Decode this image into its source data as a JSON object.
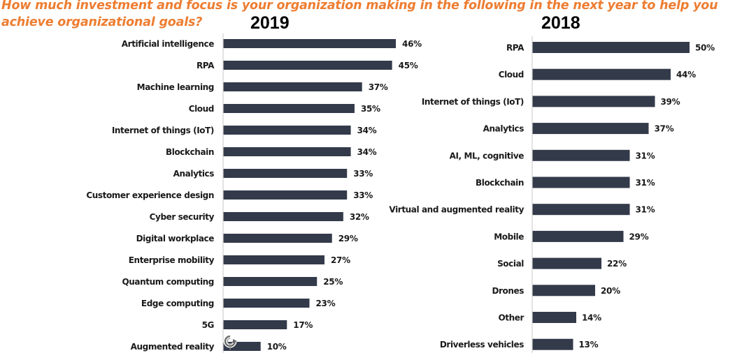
{
  "question": "How much investment and focus is your organization making in the following in the next year to help you achieve organizational goals?",
  "colors": {
    "question": "#ed7d31",
    "bar": "#333a4a",
    "axis": "#d0d0d0",
    "text": "#1a1a1a"
  },
  "chart_data": [
    {
      "type": "bar",
      "orientation": "horizontal",
      "title": "2019",
      "xlabel": "",
      "ylabel": "",
      "xlim": [
        0,
        50
      ],
      "grid": false,
      "value_format": "percent",
      "categories": [
        "Artificial intelligence",
        "RPA",
        "Machine learning",
        "Cloud",
        "Internet of things (IoT)",
        "Blockchain",
        "Analytics",
        "Customer experience design",
        "Cyber security",
        "Digital workplace",
        "Enterprise mobility",
        "Quantum computing",
        "Edge computing",
        "5G",
        "Augmented reality"
      ],
      "values": [
        46,
        45,
        37,
        35,
        34,
        34,
        33,
        33,
        32,
        29,
        27,
        25,
        23,
        17,
        10
      ],
      "labels": [
        "46%",
        "45%",
        "37%",
        "35%",
        "34%",
        "34%",
        "33%",
        "33%",
        "32%",
        "29%",
        "27%",
        "25%",
        "23%",
        "17%",
        "10%"
      ]
    },
    {
      "type": "bar",
      "orientation": "horizontal",
      "title": "2018",
      "xlabel": "",
      "ylabel": "",
      "xlim": [
        0,
        60
      ],
      "grid": false,
      "value_format": "percent",
      "categories": [
        "RPA",
        "Cloud",
        "Internet of things (IoT)",
        "Analytics",
        "AI, ML, cognitive",
        "Blockchain",
        "Virtual and augmented reality",
        "Mobile",
        "Social",
        "Drones",
        "Other",
        "Driverless vehicles"
      ],
      "values": [
        50,
        44,
        39,
        37,
        31,
        31,
        31,
        29,
        22,
        20,
        14,
        13
      ],
      "labels": [
        "50%",
        "44%",
        "39%",
        "37%",
        "31%",
        "31%",
        "31%",
        "29%",
        "22%",
        "20%",
        "14%",
        "13%"
      ]
    }
  ],
  "icons": {
    "cursor": "rotate-cursor-icon"
  }
}
